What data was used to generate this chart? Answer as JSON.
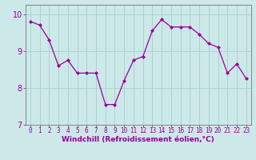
{
  "x": [
    0,
    1,
    2,
    3,
    4,
    5,
    6,
    7,
    8,
    9,
    10,
    11,
    12,
    13,
    14,
    15,
    16,
    17,
    18,
    19,
    20,
    21,
    22,
    23
  ],
  "y": [
    9.8,
    9.7,
    9.3,
    8.6,
    8.75,
    8.4,
    8.4,
    8.4,
    7.55,
    7.55,
    8.2,
    8.75,
    8.85,
    9.55,
    9.85,
    9.65,
    9.65,
    9.65,
    9.45,
    9.2,
    9.1,
    8.4,
    8.65,
    8.25
  ],
  "line_color": "#990099",
  "marker": "D",
  "marker_size": 2.0,
  "line_width": 0.9,
  "bg_color": "#cce8e8",
  "grid_color": "#aad4d4",
  "xlabel": "Windchill (Refroidissement éolien,°C)",
  "xlabel_color": "#990099",
  "tick_color": "#990099",
  "ylim": [
    7.0,
    10.25
  ],
  "xlim": [
    -0.5,
    23.5
  ],
  "yticks": [
    7,
    8,
    9,
    10
  ],
  "xticks": [
    0,
    1,
    2,
    3,
    4,
    5,
    6,
    7,
    8,
    9,
    10,
    11,
    12,
    13,
    14,
    15,
    16,
    17,
    18,
    19,
    20,
    21,
    22,
    23
  ],
  "spine_color": "#777777",
  "tick_fontsize": 5.5,
  "xlabel_fontsize": 6.5
}
